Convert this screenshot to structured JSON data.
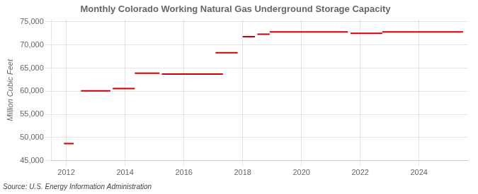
{
  "chart_data": {
    "type": "line",
    "title": "Monthly Colorado Working Natural Gas Underground Storage Capacity",
    "ylabel": "Million Cubic Feet",
    "source": "Source: U.S. Energy Information Administration",
    "color": "#cc0000",
    "grid": true,
    "xlim": [
      2011.5,
      2025.67
    ],
    "xticks": [
      2012,
      2014,
      2016,
      2018,
      2020,
      2022,
      2024
    ],
    "ylim": [
      45000,
      75500
    ],
    "yticks": [
      {
        "value": 45000,
        "label": "45,000"
      },
      {
        "value": 50000,
        "label": "50,000"
      },
      {
        "value": 55000,
        "label": "55,000"
      },
      {
        "value": 60000,
        "label": "60,000"
      },
      {
        "value": 65000,
        "label": "65,000"
      },
      {
        "value": 70000,
        "label": "70,000"
      },
      {
        "value": 75000,
        "label": "75,000"
      }
    ],
    "series": [
      {
        "x": [
          2011.92,
          2012.25
        ],
        "values": [
          48700,
          48700
        ]
      },
      {
        "x": [
          2012.5,
          2013.5
        ],
        "values": [
          60100,
          60100
        ]
      },
      {
        "x": [
          2013.58,
          2014.33
        ],
        "values": [
          60600,
          60600
        ]
      },
      {
        "x": [
          2014.33,
          2015.17
        ],
        "values": [
          63900,
          63900
        ]
      },
      {
        "x": [
          2015.25,
          2017.33
        ],
        "values": [
          63700,
          63700
        ]
      },
      {
        "x": [
          2017.08,
          2017.83
        ],
        "values": [
          68300,
          68300
        ]
      },
      {
        "x": [
          2018.0,
          2018.42
        ],
        "values": [
          71800,
          71800
        ]
      },
      {
        "x": [
          2018.5,
          2018.92
        ],
        "values": [
          72300,
          72300
        ]
      },
      {
        "x": [
          2018.92,
          2021.58
        ],
        "values": [
          72800,
          72800
        ]
      },
      {
        "x": [
          2021.67,
          2022.75
        ],
        "values": [
          72500,
          72500
        ]
      },
      {
        "x": [
          2022.75,
          2025.5
        ],
        "values": [
          72800,
          72800
        ]
      }
    ]
  }
}
